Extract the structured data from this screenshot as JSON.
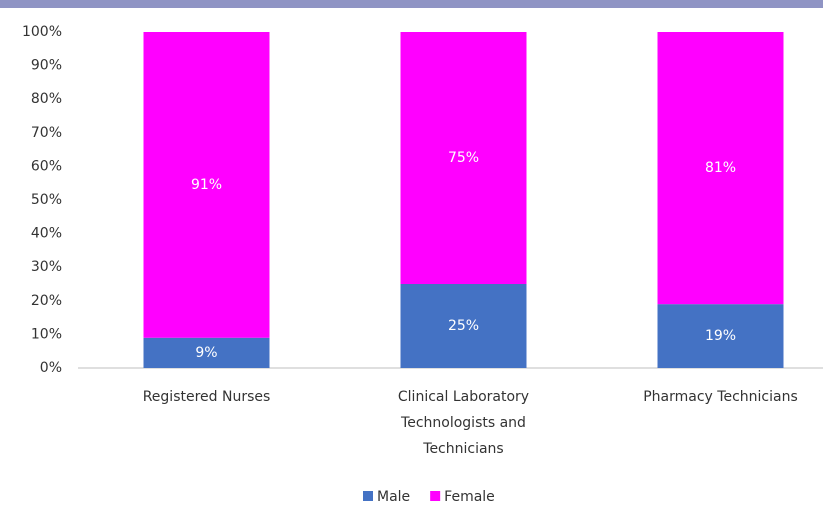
{
  "chart_data": {
    "type": "stacked_bar",
    "categories": [
      "Registered Nurses",
      "Clinical Laboratory Technologists and Technicians",
      "Pharmacy Technicians"
    ],
    "series": [
      {
        "name": "Male",
        "color": "#4472c4",
        "values": [
          9,
          25,
          19
        ],
        "value_labels": [
          "9%",
          "25%",
          "19%"
        ]
      },
      {
        "name": "Female",
        "color": "#ff00ff",
        "values": [
          91,
          75,
          81
        ],
        "value_labels": [
          "91%",
          "75%",
          "81%"
        ]
      }
    ],
    "ylim": [
      0,
      100
    ],
    "yticks": [
      {
        "value": 0,
        "label": "0%"
      },
      {
        "value": 10,
        "label": "10%"
      },
      {
        "value": 20,
        "label": "20%"
      },
      {
        "value": 30,
        "label": "30%"
      },
      {
        "value": 40,
        "label": "40%"
      },
      {
        "value": 50,
        "label": "50%"
      },
      {
        "value": 60,
        "label": "60%"
      },
      {
        "value": 70,
        "label": "70%"
      },
      {
        "value": 80,
        "label": "80%"
      },
      {
        "value": 90,
        "label": "90%"
      },
      {
        "value": 100,
        "label": "100%"
      }
    ],
    "legend": "bottom"
  }
}
